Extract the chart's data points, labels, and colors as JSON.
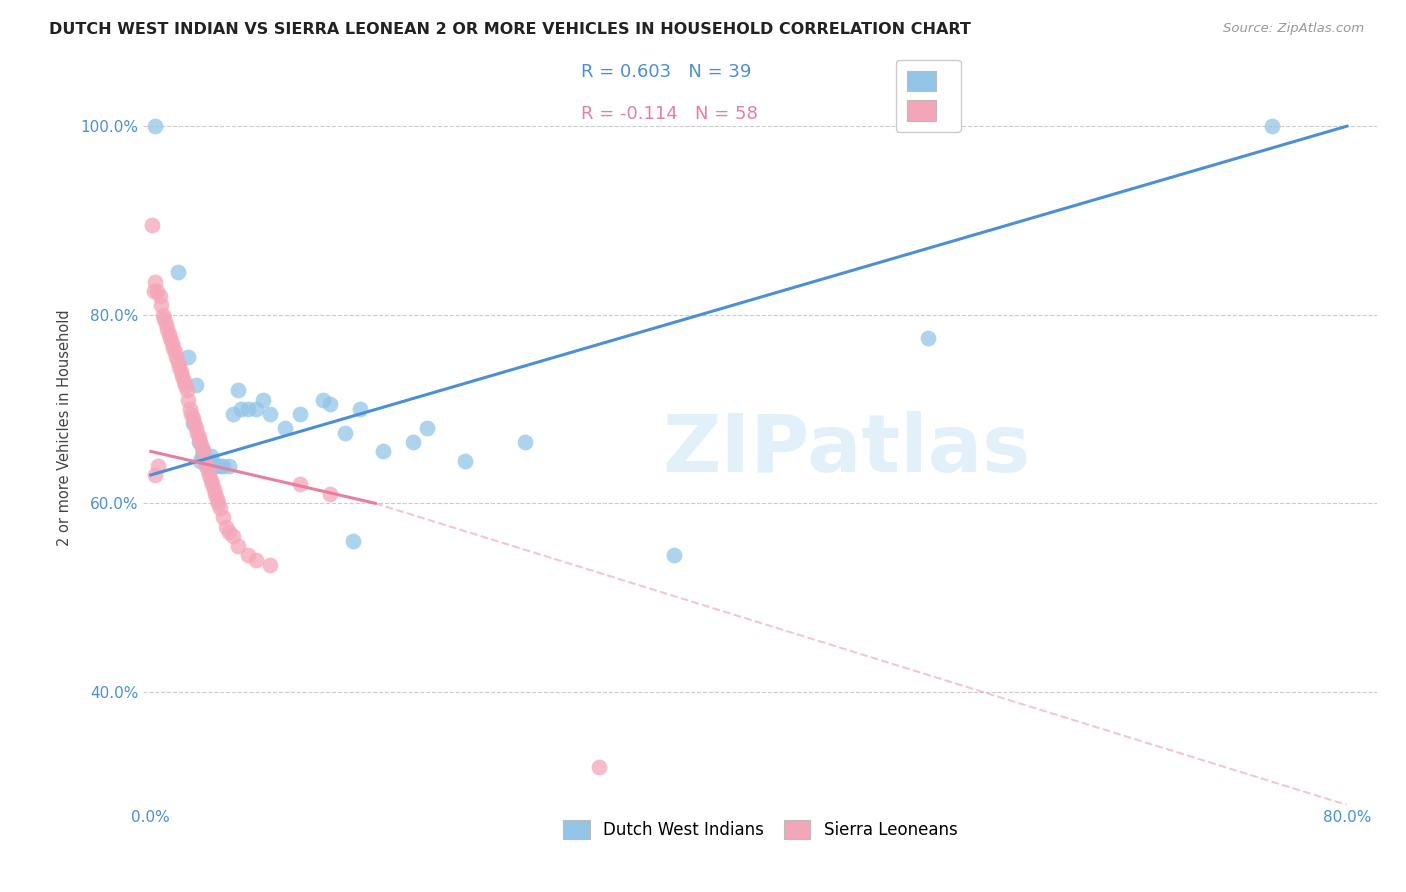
{
  "title": "DUTCH WEST INDIAN VS SIERRA LEONEAN 2 OR MORE VEHICLES IN HOUSEHOLD CORRELATION CHART",
  "source": "Source: ZipAtlas.com",
  "ylabel": "2 or more Vehicles in Household",
  "xlim": [
    -0.005,
    0.82
  ],
  "ylim": [
    0.28,
    1.08
  ],
  "xtick_positions": [
    0.0,
    0.1,
    0.2,
    0.3,
    0.4,
    0.5,
    0.6,
    0.7,
    0.8
  ],
  "xticklabels": [
    "0.0%",
    "",
    "",
    "",
    "",
    "",
    "",
    "",
    "80.0%"
  ],
  "ytick_positions": [
    0.4,
    0.6,
    0.8,
    1.0
  ],
  "yticklabels": [
    "40.0%",
    "60.0%",
    "80.0%",
    "100.0%"
  ],
  "blue_R": 0.603,
  "blue_N": 39,
  "pink_R": -0.114,
  "pink_N": 58,
  "blue_color": "#92c5e8",
  "pink_color": "#f4a6b8",
  "blue_line_color": "#4a90d9",
  "pink_line_color": "#e87fa0",
  "legend_blue_label": "Dutch West Indians",
  "legend_pink_label": "Sierra Leoneans",
  "blue_trend": [
    0.0,
    0.8,
    0.63,
    1.0
  ],
  "pink_trend_solid": [
    0.0,
    0.15,
    0.655,
    0.6
  ],
  "pink_trend_dash": [
    0.15,
    0.8,
    0.6,
    0.28
  ],
  "blue_x": [
    0.003,
    0.018,
    0.025,
    0.028,
    0.03,
    0.032,
    0.033,
    0.034,
    0.035,
    0.036,
    0.038,
    0.04,
    0.041,
    0.043,
    0.046,
    0.048,
    0.052,
    0.055,
    0.058,
    0.06,
    0.065,
    0.07,
    0.075,
    0.08,
    0.09,
    0.1,
    0.115,
    0.12,
    0.13,
    0.14,
    0.155,
    0.175,
    0.135,
    0.185,
    0.25,
    0.35,
    0.52,
    0.75,
    0.21
  ],
  "blue_y": [
    1.0,
    0.845,
    0.755,
    0.685,
    0.725,
    0.665,
    0.645,
    0.65,
    0.655,
    0.645,
    0.645,
    0.65,
    0.645,
    0.64,
    0.64,
    0.64,
    0.64,
    0.695,
    0.72,
    0.7,
    0.7,
    0.7,
    0.71,
    0.695,
    0.68,
    0.695,
    0.71,
    0.705,
    0.675,
    0.7,
    0.655,
    0.665,
    0.56,
    0.68,
    0.665,
    0.545,
    0.775,
    1.0,
    0.645
  ],
  "pink_x": [
    0.001,
    0.002,
    0.003,
    0.004,
    0.006,
    0.007,
    0.008,
    0.009,
    0.01,
    0.011,
    0.012,
    0.013,
    0.014,
    0.015,
    0.016,
    0.017,
    0.018,
    0.019,
    0.02,
    0.021,
    0.022,
    0.023,
    0.024,
    0.025,
    0.026,
    0.027,
    0.028,
    0.029,
    0.03,
    0.031,
    0.032,
    0.033,
    0.034,
    0.035,
    0.036,
    0.037,
    0.038,
    0.039,
    0.04,
    0.041,
    0.042,
    0.043,
    0.044,
    0.045,
    0.046,
    0.048,
    0.05,
    0.052,
    0.055,
    0.058,
    0.065,
    0.07,
    0.08,
    0.1,
    0.12,
    0.003,
    0.005,
    0.3
  ],
  "pink_y": [
    0.895,
    0.825,
    0.835,
    0.825,
    0.82,
    0.81,
    0.8,
    0.795,
    0.79,
    0.785,
    0.78,
    0.775,
    0.77,
    0.765,
    0.76,
    0.755,
    0.75,
    0.745,
    0.74,
    0.735,
    0.73,
    0.725,
    0.72,
    0.71,
    0.7,
    0.695,
    0.69,
    0.685,
    0.68,
    0.675,
    0.67,
    0.665,
    0.66,
    0.655,
    0.645,
    0.64,
    0.635,
    0.63,
    0.625,
    0.62,
    0.615,
    0.61,
    0.605,
    0.6,
    0.595,
    0.585,
    0.575,
    0.57,
    0.565,
    0.555,
    0.545,
    0.54,
    0.535,
    0.62,
    0.61,
    0.63,
    0.64,
    0.32
  ]
}
